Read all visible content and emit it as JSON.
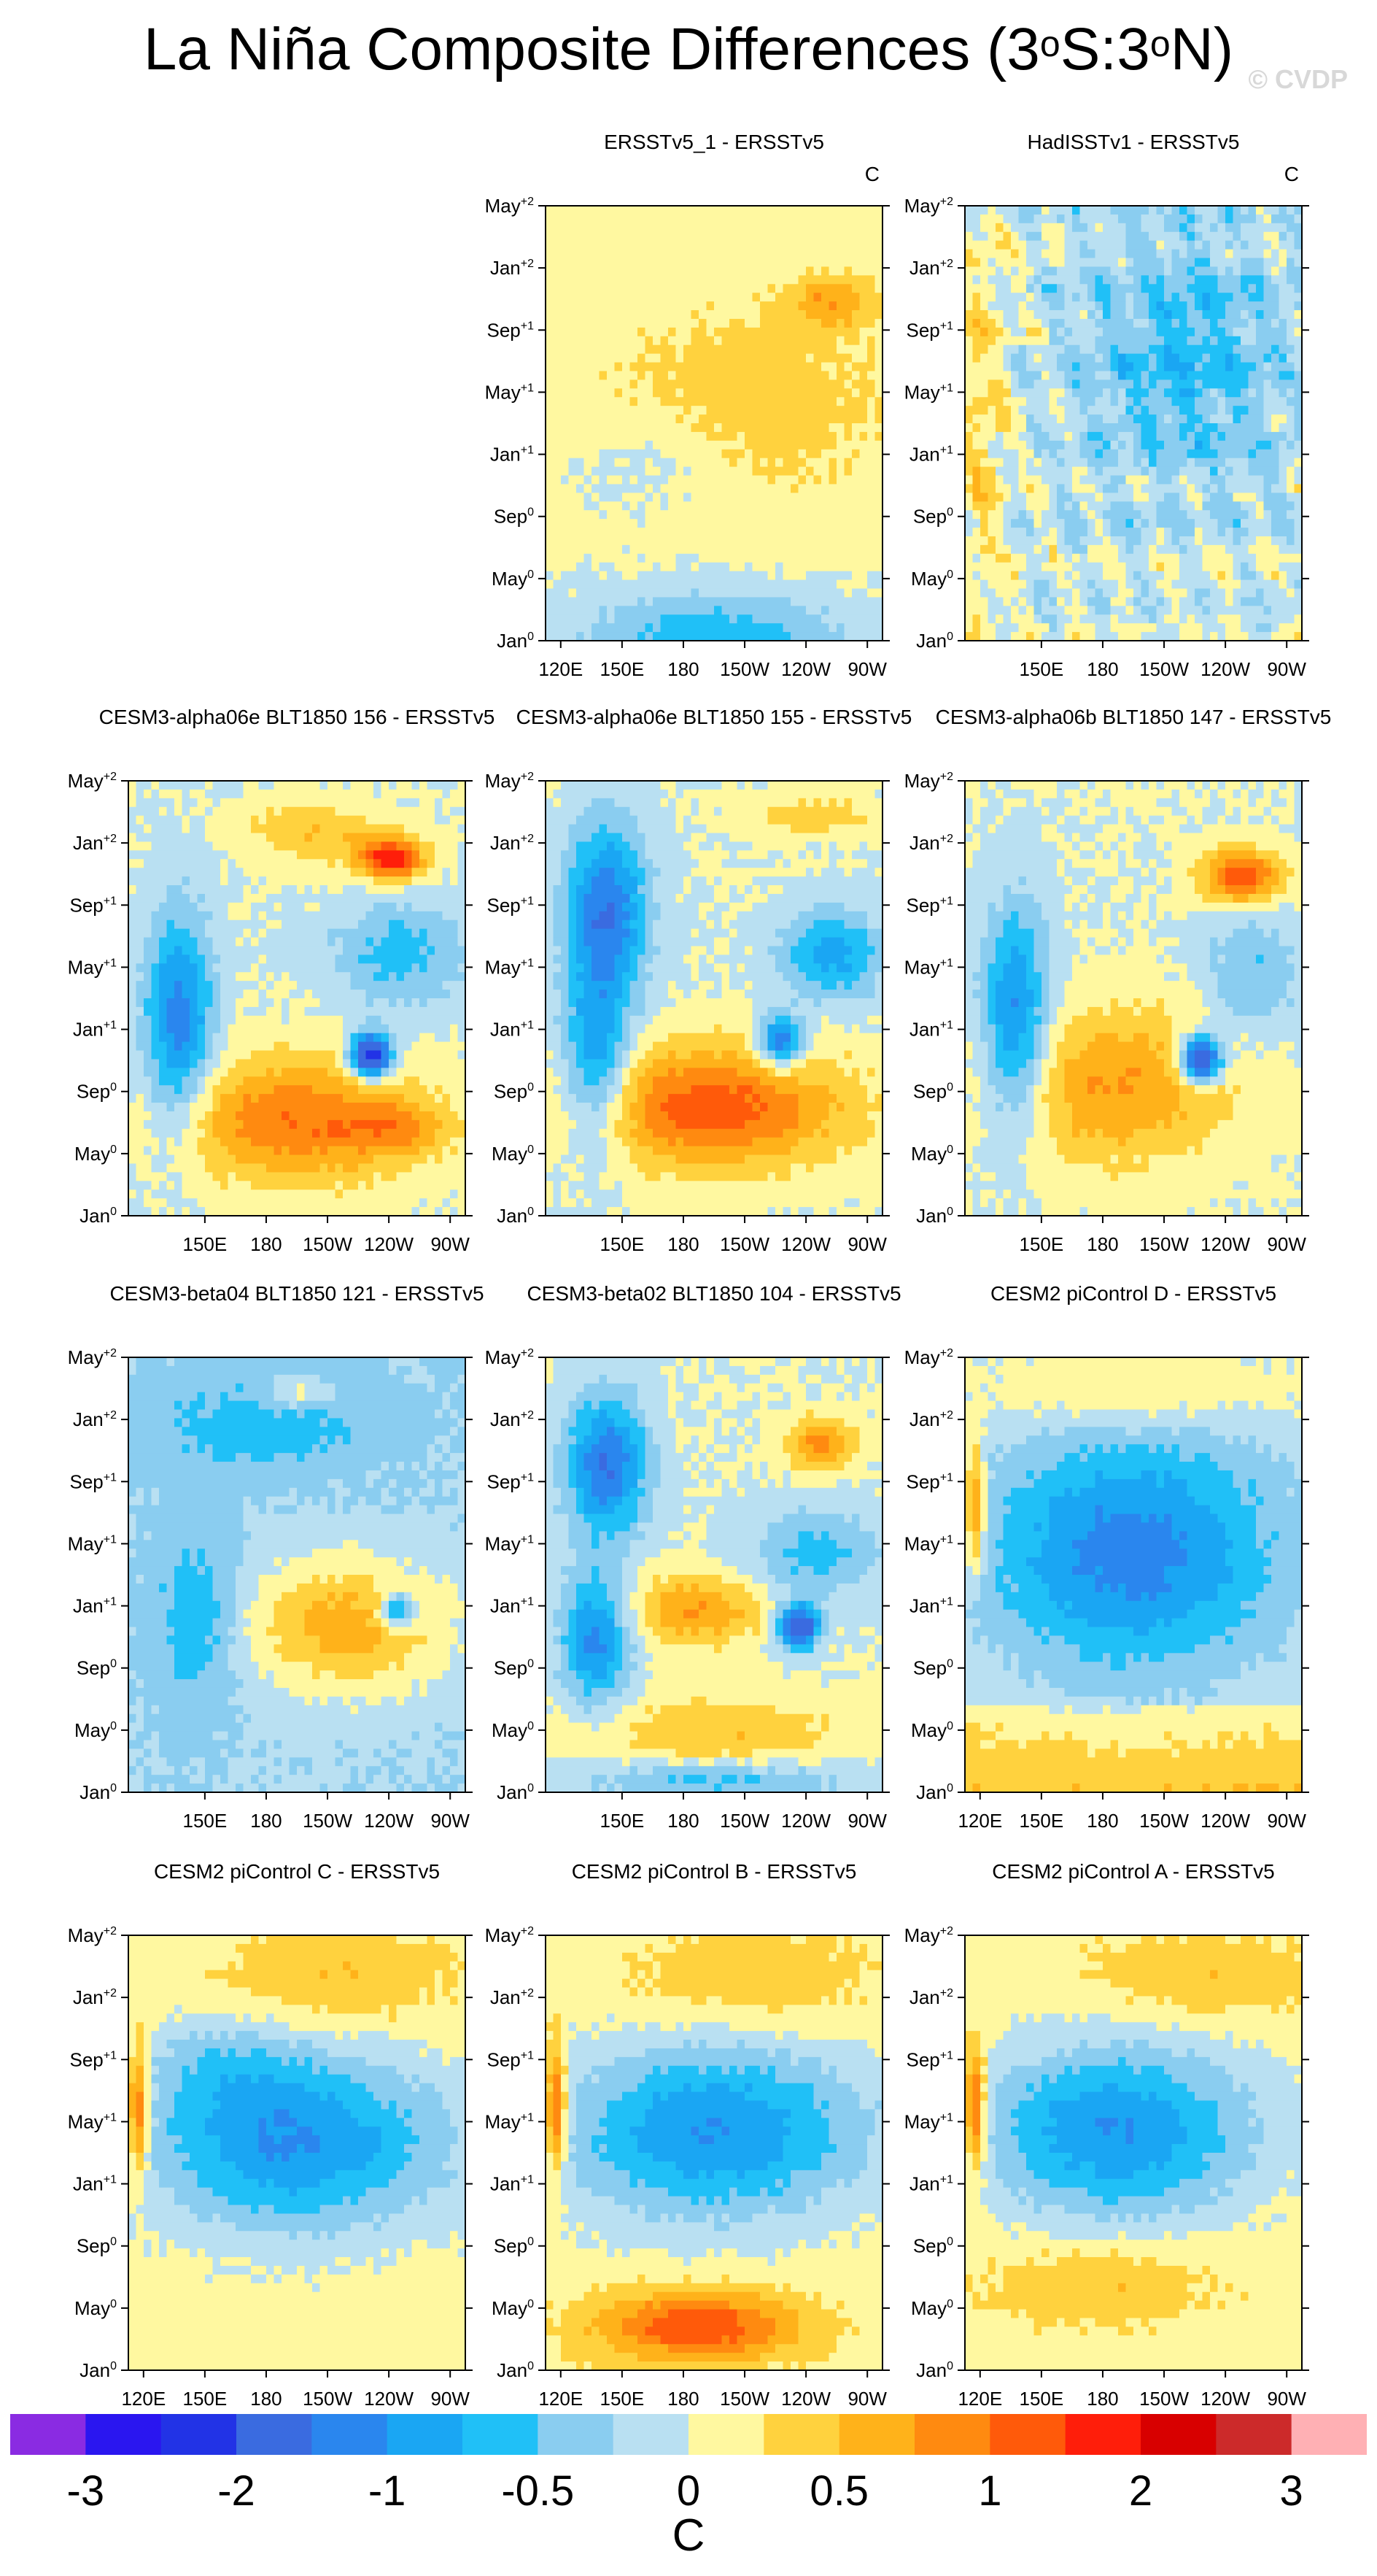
{
  "title": "La Niña Composite Differences (3",
  "title_parts": {
    "a": "La Niña Composite Differences (3",
    "b": "S:3",
    "c": "N)",
    "deg": "o"
  },
  "watermark": "© CVDP",
  "units": "C",
  "colorbar": {
    "colors": [
      "#8a2be2",
      "#2a16f0",
      "#2233e6",
      "#3a6be0",
      "#2a86ee",
      "#1aa6f3",
      "#20c0f7",
      "#8acdf0",
      "#b9e0f2",
      "#fff8a0",
      "#ffd23e",
      "#ffb21a",
      "#ff8a10",
      "#ff5a0a",
      "#ff1e0a",
      "#d80000",
      "#cc2a2a",
      "#ffb0b4"
    ],
    "labels": [
      "-3",
      "-2",
      "-1",
      "-0.5",
      "0",
      "0.5",
      "1",
      "2",
      "3"
    ],
    "unit_label": "C"
  },
  "y_ticks": [
    {
      "base": "Jan",
      "sup": "0"
    },
    {
      "base": "May",
      "sup": "0"
    },
    {
      "base": "Sep",
      "sup": "0"
    },
    {
      "base": "Jan",
      "sup": "+1"
    },
    {
      "base": "May",
      "sup": "+1"
    },
    {
      "base": "Sep",
      "sup": "+1"
    },
    {
      "base": "Jan",
      "sup": "+2"
    },
    {
      "base": "May",
      "sup": "+2"
    }
  ],
  "panels": [
    {
      "title": "ERSSTv5_1 - ERSSTv5",
      "units": "C",
      "xticks": [
        "120E",
        "150E",
        "180",
        "150W",
        "120W",
        "90W"
      ]
    },
    {
      "title": "HadISSTv1 - ERSSTv5",
      "units": "C",
      "xticks": [
        "150E",
        "180",
        "150W",
        "120W",
        "90W"
      ]
    },
    {
      "title": "CESM3-alpha06e BLT1850 156 - ERSSTv5",
      "units": "",
      "xticks": [
        "150E",
        "180",
        "150W",
        "120W",
        "90W"
      ]
    },
    {
      "title": "CESM3-alpha06e BLT1850 155 - ERSSTv5",
      "units": "",
      "xticks": [
        "150E",
        "180",
        "150W",
        "120W",
        "90W"
      ]
    },
    {
      "title": "CESM3-alpha06b BLT1850 147 - ERSSTv5",
      "units": "",
      "xticks": [
        "150E",
        "180",
        "150W",
        "120W",
        "90W"
      ]
    },
    {
      "title": "CESM3-beta04 BLT1850 121 - ERSSTv5",
      "units": "",
      "xticks": [
        "150E",
        "180",
        "150W",
        "120W",
        "90W"
      ]
    },
    {
      "title": "CESM3-beta02 BLT1850 104 - ERSSTv5",
      "units": "",
      "xticks": [
        "150E",
        "180",
        "150W",
        "120W",
        "90W"
      ]
    },
    {
      "title": "CESM2 piControl D - ERSSTv5",
      "units": "",
      "xticks": [
        "120E",
        "150E",
        "180",
        "150W",
        "120W",
        "90W"
      ]
    },
    {
      "title": "CESM2 piControl C - ERSSTv5",
      "units": "",
      "xticks": [
        "120E",
        "150E",
        "180",
        "150W",
        "120W",
        "90W"
      ]
    },
    {
      "title": "CESM2 piControl B - ERSSTv5",
      "units": "",
      "xticks": [
        "120E",
        "150E",
        "180",
        "150W",
        "120W",
        "90W"
      ]
    },
    {
      "title": "CESM2 piControl A - ERSSTv5",
      "units": "",
      "xticks": [
        "120E",
        "150E",
        "180",
        "150W",
        "120W",
        "90W"
      ]
    }
  ],
  "chart_data": {
    "type": "heatmap",
    "title": "La Niña Composite Differences (3°S:3°N)",
    "colorbar_levels": [
      -3,
      -2,
      -1,
      -0.5,
      0,
      0.5,
      1,
      2,
      3
    ],
    "x_axis": "longitude",
    "y_axis": "month (Jan0 – May+2)",
    "panels": [
      "ERSSTv5_1 - ERSSTv5",
      "HadISSTv1 - ERSSTv5",
      "CESM3-alpha06e BLT1850 156 - ERSSTv5",
      "CESM3-alpha06e BLT1850 155 - ERSSTv5",
      "CESM3-alpha06b BLT1850 147 - ERSSTv5",
      "CESM3-beta04 BLT1850 121 - ERSSTv5",
      "CESM3-beta02 BLT1850 104 - ERSSTv5",
      "CESM2 piControl D - ERSSTv5",
      "CESM2 piControl C - ERSSTv5",
      "CESM2 piControl B - ERSSTv5",
      "CESM2 piControl A - ERSSTv5"
    ]
  }
}
